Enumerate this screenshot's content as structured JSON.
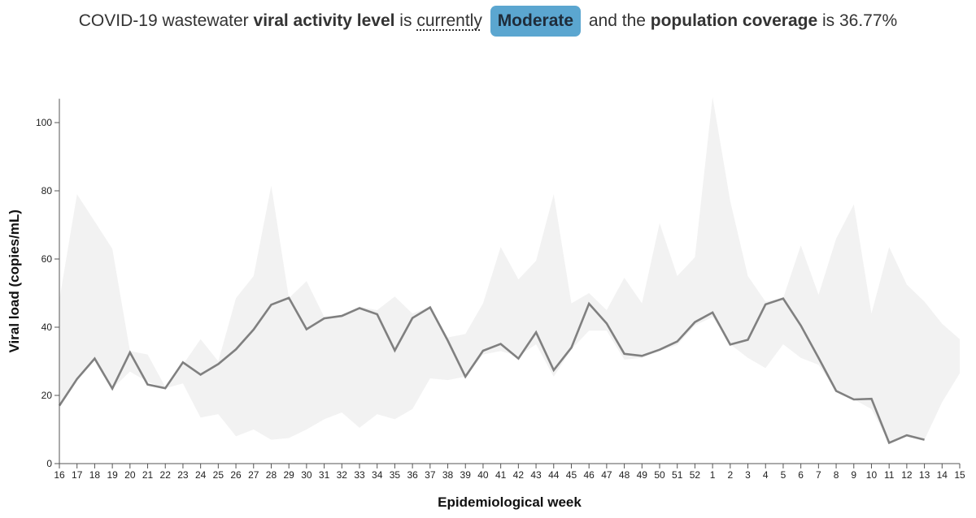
{
  "header": {
    "part1": "COVID-19 wastewater ",
    "part2": "viral activity level",
    "part3": " is ",
    "part4": "currently",
    "level": "Moderate",
    "part5": " and the ",
    "part6": "population coverage",
    "part7": " is 36.77%"
  },
  "colors": {
    "line": "#808080",
    "band": "#f2f2f2",
    "badge": "#5ba6d0",
    "axis": "#555555"
  },
  "chart_data": {
    "type": "line",
    "xlabel": "Epidemiological week",
    "ylabel": "Viral load (copies/mL)",
    "ylim": [
      0,
      107
    ],
    "yticks": [
      0,
      20,
      40,
      60,
      80,
      100
    ],
    "categories": [
      "16",
      "17",
      "18",
      "19",
      "20",
      "21",
      "22",
      "23",
      "24",
      "25",
      "26",
      "27",
      "28",
      "29",
      "30",
      "31",
      "32",
      "33",
      "34",
      "35",
      "36",
      "37",
      "38",
      "39",
      "40",
      "41",
      "42",
      "43",
      "44",
      "45",
      "46",
      "47",
      "48",
      "49",
      "50",
      "51",
      "52",
      "1",
      "2",
      "3",
      "4",
      "5",
      "6",
      "7",
      "8",
      "9",
      "10",
      "11",
      "12",
      "13",
      "14",
      "15"
    ],
    "series": [
      {
        "values": [
          17,
          24.8,
          30.8,
          22,
          32.6,
          23.2,
          22.1,
          29.7,
          26.1,
          29.2,
          33.5,
          39.3,
          46.6,
          48.6,
          39.4,
          42.6,
          43.3,
          45.6,
          43.8,
          33.2,
          42.7,
          45.8,
          36.1,
          25.5,
          33.1,
          35.1,
          30.8,
          38.5,
          27.4,
          34,
          46.9,
          41.1,
          32.2,
          31.6,
          33.4,
          35.8,
          41.5,
          44.3,
          34.9,
          36.3,
          46.7,
          48.4,
          40.5,
          31,
          21.3,
          18.8,
          19,
          6.1,
          8.3,
          7,
          null,
          null
        ]
      }
    ],
    "band": {
      "upper": [
        48,
        79,
        71,
        63,
        33,
        32,
        22.5,
        29,
        36.5,
        30,
        48.5,
        55,
        81.5,
        48.5,
        53.5,
        43,
        43.5,
        46,
        45,
        49,
        44,
        46,
        37,
        38,
        47,
        63.5,
        54,
        59.5,
        79,
        47,
        50,
        45,
        54.5,
        47,
        70.5,
        55,
        60.5,
        107.5,
        77,
        55,
        47.5,
        48.5,
        64,
        49.5,
        66,
        76,
        44,
        63.5,
        52.5,
        47.5,
        41,
        36.5
      ],
      "lower": [
        17,
        24.8,
        30.8,
        22,
        27,
        24,
        22.1,
        23.5,
        13.5,
        14.5,
        8,
        10,
        7,
        7.5,
        10,
        13,
        15,
        10.5,
        14.5,
        13,
        16,
        25,
        24.5,
        25.5,
        32,
        33,
        31.5,
        35,
        25.5,
        33.5,
        39,
        39,
        30.5,
        31,
        33,
        34.8,
        40.5,
        43,
        35,
        31,
        28,
        35,
        31,
        29,
        21.3,
        18.8,
        16,
        6.1,
        8.3,
        7,
        18,
        26.5
      ]
    }
  }
}
